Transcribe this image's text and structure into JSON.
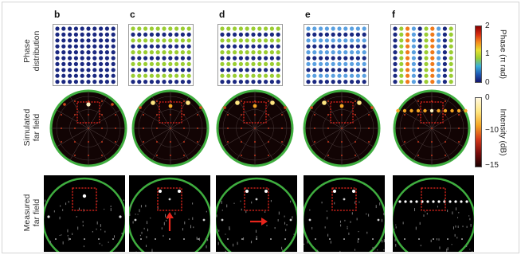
{
  "panels": [
    {
      "letter": "b",
      "pattern": "uniform"
    },
    {
      "letter": "c",
      "pattern": "row-alt"
    },
    {
      "letter": "d",
      "pattern": "row-alt"
    },
    {
      "letter": "e",
      "pattern": "blue-row-alt"
    },
    {
      "letter": "f",
      "pattern": "col-multi"
    }
  ],
  "row_labels": {
    "phase": [
      "Phase",
      "distribution"
    ],
    "simulated": [
      "Simulated",
      "far field"
    ],
    "measured": [
      "Measured",
      "far field"
    ]
  },
  "colorbar_phase": {
    "title": "Phase (π rad)",
    "ticks": [
      "2",
      "1",
      "0"
    ],
    "colors": [
      "#8b0000",
      "#d62a10",
      "#f58a1c",
      "#e8e030",
      "#9acd32",
      "#3ab0d8",
      "#1e5ab4",
      "#14146e"
    ]
  },
  "colorbar_intensity": {
    "title": "Intensity (dB)",
    "ticks": [
      "0",
      "−10",
      "−15"
    ],
    "colors": [
      "#fff8e0",
      "#ffe680",
      "#f5a623",
      "#d4381a",
      "#7a0c0c",
      "#1a0000"
    ]
  },
  "colors": {
    "dot_blue": "#1a2880",
    "dot_green": "#9acd32",
    "dot_lightblue": "#5aa0e0",
    "dot_orange": "#f07a1a",
    "far_field_ring": "#3fae3f",
    "window_box": "#e8251c",
    "arrow": "#e8251c"
  },
  "arrows": [
    {
      "panel": "c",
      "direction": "up"
    },
    {
      "panel": "d",
      "direction": "right"
    }
  ]
}
